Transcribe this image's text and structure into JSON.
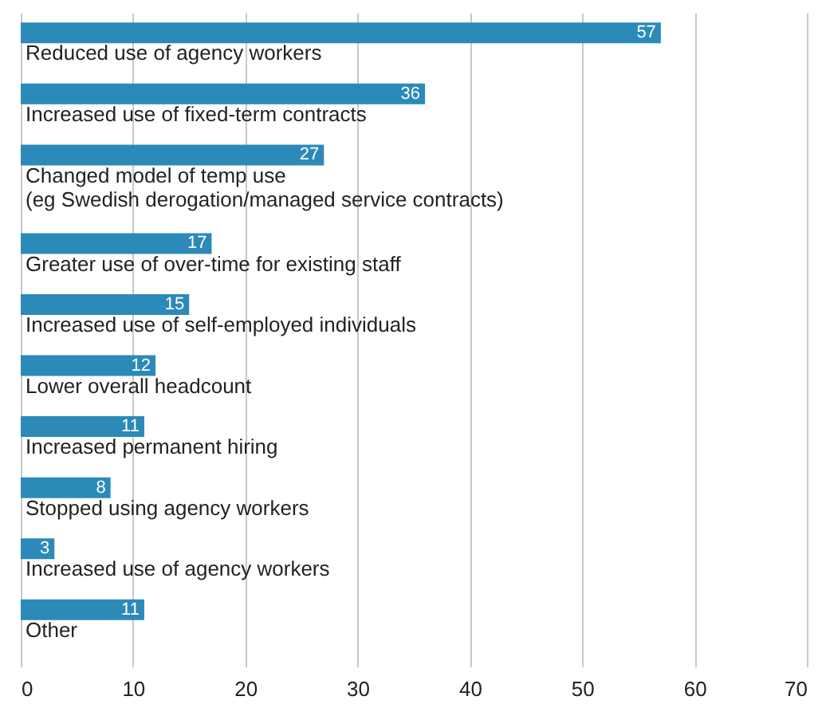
{
  "chart_data": {
    "type": "bar",
    "orientation": "horizontal",
    "categories": [
      "Reduced use of agency workers",
      "Increased use of fixed-term contracts",
      "Changed model of temp use\n(eg Swedish derogation/managed service contracts)",
      "Greater use of over-time for existing staff",
      "Increased use of self-employed individuals",
      "Lower overall headcount",
      "Increased permanent hiring",
      "Stopped using agency workers",
      "Increased use of agency workers",
      "Other"
    ],
    "values": [
      57,
      36,
      27,
      17,
      15,
      12,
      11,
      8,
      3,
      11
    ],
    "color": "#2b8ab8",
    "xlim": [
      0,
      70
    ],
    "xticks": [
      0,
      10,
      20,
      30,
      40,
      50,
      60,
      70
    ],
    "grid": "x",
    "data_labels": true
  }
}
